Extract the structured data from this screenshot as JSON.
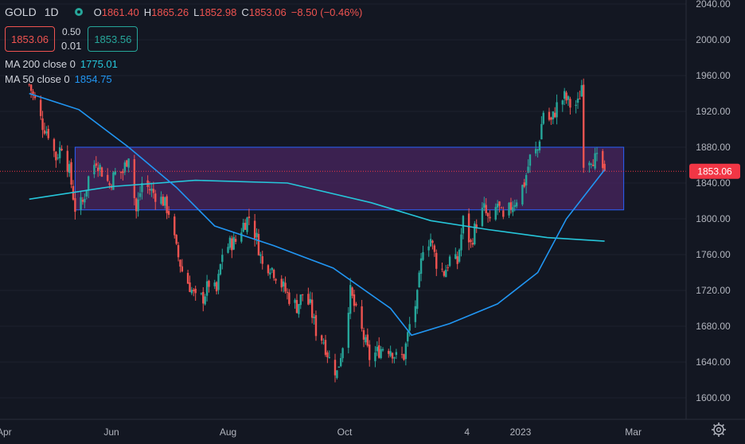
{
  "header": {
    "symbol": "GOLD",
    "timeframe": "1D",
    "ohlc": [
      {
        "key": "O",
        "value": "1861.40"
      },
      {
        "key": "H",
        "value": "1865.26"
      },
      {
        "key": "L",
        "value": "1852.98"
      },
      {
        "key": "C",
        "value": "1853.06"
      }
    ],
    "change": "−8.50 (−0.46%)",
    "sell_price": "1853.06",
    "buy_price": "1853.56",
    "spread": "0.50",
    "quantity": "0.01"
  },
  "indicators": [
    {
      "label": "MA 200 close 0",
      "value": "1775.01",
      "color": "#26c6da"
    },
    {
      "label": "MA 50 close 0",
      "value": "1854.75",
      "color": "#2196f3"
    }
  ],
  "price_axis": {
    "ticks": [
      "2040.00",
      "2000.00",
      "1960.00",
      "1920.00",
      "1880.00",
      "1840.00",
      "1800.00",
      "1760.00",
      "1720.00",
      "1680.00",
      "1640.00",
      "1600.00"
    ],
    "last_price_label": "1853.06",
    "last_price_color": "#f23645"
  },
  "time_axis": {
    "ticks": [
      "Apr",
      "Jun",
      "Aug",
      "Oct",
      "4",
      "2023",
      "Mar"
    ]
  },
  "icons": {
    "settings": "gear-icon"
  },
  "colors": {
    "background": "#131722",
    "up": "#26a69a",
    "down": "#ef5350",
    "zone_fill": "#4a2660",
    "zone_border": "#2962ff"
  },
  "chart_data": {
    "type": "candlestick",
    "symbol": "GOLD",
    "interval": "1D",
    "y_range": [
      1590,
      2045
    ],
    "x_range": [
      "2022-04-19",
      "2023-03-03"
    ],
    "close_series": [
      {
        "date": "2022-04-19",
        "close": 1950
      },
      {
        "date": "2022-04-22",
        "close": 1932
      },
      {
        "date": "2022-04-26",
        "close": 1905
      },
      {
        "date": "2022-04-29",
        "close": 1896
      },
      {
        "date": "2022-05-03",
        "close": 1868
      },
      {
        "date": "2022-05-06",
        "close": 1883
      },
      {
        "date": "2022-05-10",
        "close": 1853
      },
      {
        "date": "2022-05-13",
        "close": 1812
      },
      {
        "date": "2022-05-17",
        "close": 1818
      },
      {
        "date": "2022-05-20",
        "close": 1846
      },
      {
        "date": "2022-05-24",
        "close": 1866
      },
      {
        "date": "2022-05-27",
        "close": 1853
      },
      {
        "date": "2022-05-31",
        "close": 1838
      },
      {
        "date": "2022-06-03",
        "close": 1851
      },
      {
        "date": "2022-06-07",
        "close": 1852
      },
      {
        "date": "2022-06-10",
        "close": 1873
      },
      {
        "date": "2022-06-14",
        "close": 1808
      },
      {
        "date": "2022-06-17",
        "close": 1840
      },
      {
        "date": "2022-06-21",
        "close": 1833
      },
      {
        "date": "2022-06-24",
        "close": 1827
      },
      {
        "date": "2022-06-28",
        "close": 1820
      },
      {
        "date": "2022-07-01",
        "close": 1808
      },
      {
        "date": "2022-07-05",
        "close": 1765
      },
      {
        "date": "2022-07-08",
        "close": 1742
      },
      {
        "date": "2022-07-12",
        "close": 1725
      },
      {
        "date": "2022-07-15",
        "close": 1710
      },
      {
        "date": "2022-07-19",
        "close": 1712
      },
      {
        "date": "2022-07-22",
        "close": 1728
      },
      {
        "date": "2022-07-26",
        "close": 1718
      },
      {
        "date": "2022-07-29",
        "close": 1762
      },
      {
        "date": "2022-08-02",
        "close": 1772
      },
      {
        "date": "2022-08-05",
        "close": 1775
      },
      {
        "date": "2022-08-09",
        "close": 1794
      },
      {
        "date": "2022-08-12",
        "close": 1802
      },
      {
        "date": "2022-08-16",
        "close": 1778
      },
      {
        "date": "2022-08-19",
        "close": 1748
      },
      {
        "date": "2022-08-23",
        "close": 1748
      },
      {
        "date": "2022-08-26",
        "close": 1738
      },
      {
        "date": "2022-08-30",
        "close": 1723
      },
      {
        "date": "2022-09-02",
        "close": 1712
      },
      {
        "date": "2022-09-06",
        "close": 1702
      },
      {
        "date": "2022-09-09",
        "close": 1716
      },
      {
        "date": "2022-09-13",
        "close": 1702
      },
      {
        "date": "2022-09-16",
        "close": 1675
      },
      {
        "date": "2022-09-20",
        "close": 1664
      },
      {
        "date": "2022-09-23",
        "close": 1643
      },
      {
        "date": "2022-09-27",
        "close": 1628
      },
      {
        "date": "2022-09-30",
        "close": 1660
      },
      {
        "date": "2022-10-04",
        "close": 1718
      },
      {
        "date": "2022-10-07",
        "close": 1695
      },
      {
        "date": "2022-10-11",
        "close": 1667
      },
      {
        "date": "2022-10-14",
        "close": 1645
      },
      {
        "date": "2022-10-18",
        "close": 1651
      },
      {
        "date": "2022-10-21",
        "close": 1657
      },
      {
        "date": "2022-10-25",
        "close": 1655
      },
      {
        "date": "2022-10-28",
        "close": 1645
      },
      {
        "date": "2022-11-01",
        "close": 1647
      },
      {
        "date": "2022-11-04",
        "close": 1681
      },
      {
        "date": "2022-11-08",
        "close": 1712
      },
      {
        "date": "2022-11-11",
        "close": 1770
      },
      {
        "date": "2022-11-15",
        "close": 1778
      },
      {
        "date": "2022-11-18",
        "close": 1751
      },
      {
        "date": "2022-11-22",
        "close": 1740
      },
      {
        "date": "2022-11-25",
        "close": 1755
      },
      {
        "date": "2022-11-29",
        "close": 1751
      },
      {
        "date": "2022-12-02",
        "close": 1798
      },
      {
        "date": "2022-12-06",
        "close": 1771
      },
      {
        "date": "2022-12-09",
        "close": 1797
      },
      {
        "date": "2022-12-13",
        "close": 1811
      },
      {
        "date": "2022-12-16",
        "close": 1793
      },
      {
        "date": "2022-12-20",
        "close": 1817
      },
      {
        "date": "2022-12-23",
        "close": 1797
      },
      {
        "date": "2022-12-27",
        "close": 1814
      },
      {
        "date": "2022-12-30",
        "close": 1823
      },
      {
        "date": "2023-01-03",
        "close": 1840
      },
      {
        "date": "2023-01-06",
        "close": 1868
      },
      {
        "date": "2023-01-10",
        "close": 1877
      },
      {
        "date": "2023-01-13",
        "close": 1920
      },
      {
        "date": "2023-01-17",
        "close": 1908
      },
      {
        "date": "2023-01-20",
        "close": 1926
      },
      {
        "date": "2023-01-24",
        "close": 1936
      },
      {
        "date": "2023-01-27",
        "close": 1927
      },
      {
        "date": "2023-01-31",
        "close": 1928
      },
      {
        "date": "2023-02-02",
        "close": 1950
      },
      {
        "date": "2023-02-03",
        "close": 1866
      },
      {
        "date": "2023-02-07",
        "close": 1869
      },
      {
        "date": "2023-02-10",
        "close": 1865
      },
      {
        "date": "2023-02-14",
        "close": 1853
      }
    ],
    "ma200": [
      {
        "date": "2022-04-19",
        "value": 1822
      },
      {
        "date": "2022-06-01",
        "value": 1836
      },
      {
        "date": "2022-07-15",
        "value": 1843
      },
      {
        "date": "2022-09-01",
        "value": 1840
      },
      {
        "date": "2022-10-15",
        "value": 1818
      },
      {
        "date": "2022-11-15",
        "value": 1798
      },
      {
        "date": "2022-12-15",
        "value": 1788
      },
      {
        "date": "2023-01-15",
        "value": 1779
      },
      {
        "date": "2023-02-14",
        "value": 1775
      }
    ],
    "ma50": [
      {
        "date": "2022-04-19",
        "value": 1940
      },
      {
        "date": "2022-05-15",
        "value": 1922
      },
      {
        "date": "2022-06-10",
        "value": 1880
      },
      {
        "date": "2022-07-05",
        "value": 1835
      },
      {
        "date": "2022-07-25",
        "value": 1792
      },
      {
        "date": "2022-08-25",
        "value": 1770
      },
      {
        "date": "2022-09-25",
        "value": 1745
      },
      {
        "date": "2022-10-25",
        "value": 1700
      },
      {
        "date": "2022-11-05",
        "value": 1670
      },
      {
        "date": "2022-11-25",
        "value": 1683
      },
      {
        "date": "2022-12-20",
        "value": 1705
      },
      {
        "date": "2023-01-10",
        "value": 1740
      },
      {
        "date": "2023-01-25",
        "value": 1800
      },
      {
        "date": "2023-02-14",
        "value": 1854.75
      }
    ],
    "zone": {
      "from": "2022-05-13",
      "to": "2023-02-24",
      "low": 1810,
      "high": 1880
    },
    "last_price": 1853.06
  }
}
